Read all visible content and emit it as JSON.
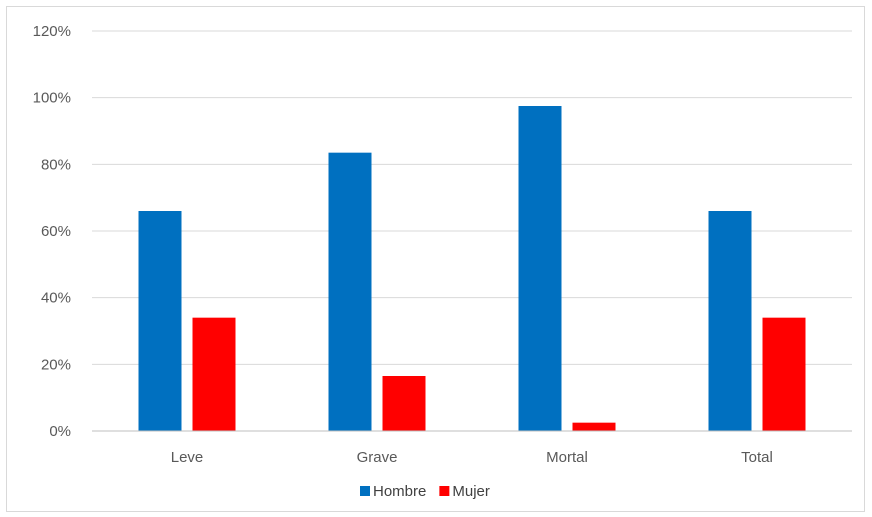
{
  "chart_data": {
    "type": "bar",
    "title": "",
    "xlabel": "",
    "ylabel": "",
    "categories": [
      "Leve",
      "Grave",
      "Mortal",
      "Total"
    ],
    "series": [
      {
        "name": "Hombre",
        "color": "#0070C0",
        "values": [
          66,
          83.5,
          97.5,
          66
        ]
      },
      {
        "name": "Mujer",
        "color": "#FF0000",
        "values": [
          34,
          16.5,
          2.5,
          34
        ]
      }
    ],
    "ylim": [
      0,
      120
    ],
    "yticks": [
      0,
      20,
      40,
      60,
      80,
      100,
      120
    ],
    "ytick_labels": [
      "0%",
      "20%",
      "40%",
      "60%",
      "80%",
      "100%",
      "120%"
    ],
    "grid": true,
    "legend": "bottom"
  }
}
